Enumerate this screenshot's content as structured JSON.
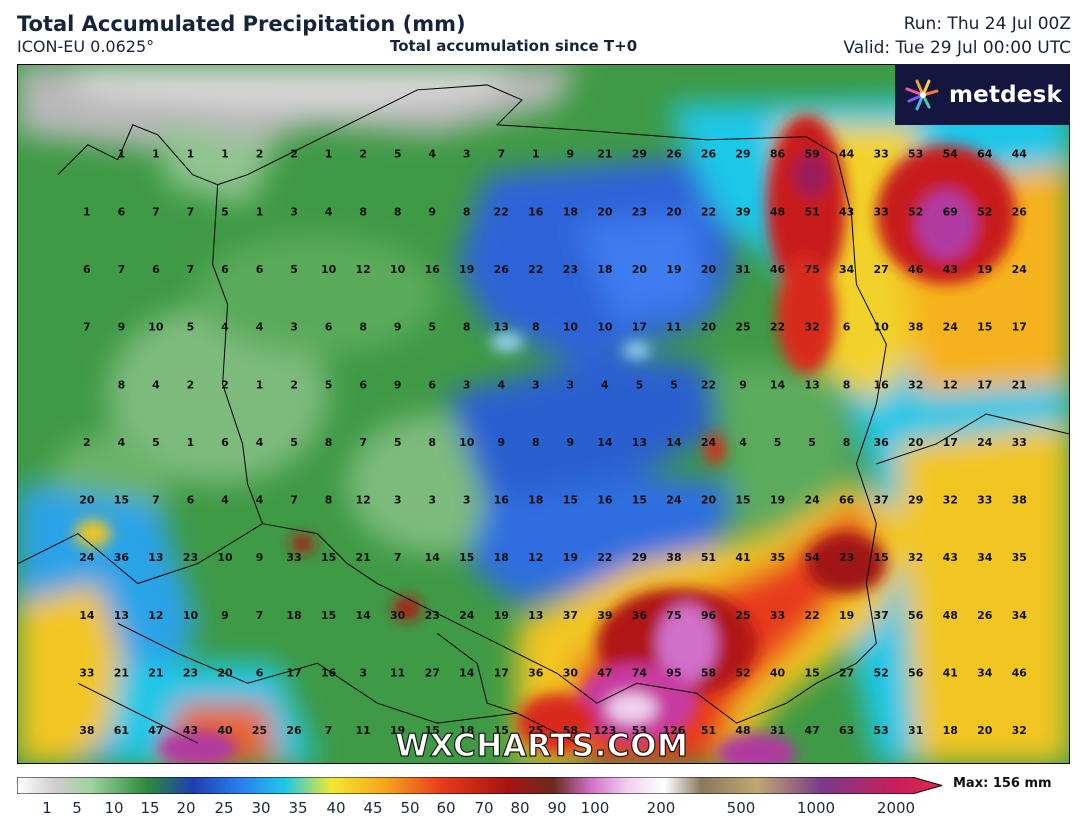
{
  "header": {
    "title": "Total Accumulated Precipitation (mm)",
    "model": "ICON-EU 0.0625°",
    "subtitle": "Total accumulation since T+0",
    "run": "Run: Thu 24 Jul 00Z",
    "valid": "Valid: Tue 29 Jul 00:00 UTC"
  },
  "logo": {
    "text": "metdesk",
    "icon": "metdesk-flower-icon"
  },
  "watermark": "WXCHARTS.COM",
  "colorbar": {
    "ticks": [
      "1",
      "5",
      "10",
      "15",
      "20",
      "25",
      "30",
      "35",
      "40",
      "45",
      "50",
      "60",
      "70",
      "80",
      "90",
      "100",
      "200",
      "500",
      "1000",
      "2000"
    ],
    "max_label": "Max: 156 mm"
  },
  "grid_values": [
    [
      "1",
      "1",
      "1",
      "1",
      "2",
      "2",
      "1",
      "2",
      "5",
      "4",
      "3",
      "7",
      "1",
      "9",
      "21",
      "29",
      "26",
      "26",
      "29",
      "86",
      "59",
      "44",
      "33",
      "53",
      "54",
      "64",
      "44"
    ],
    [
      "1",
      "6",
      "7",
      "7",
      "5",
      "1",
      "3",
      "4",
      "8",
      "8",
      "9",
      "8",
      "22",
      "16",
      "18",
      "20",
      "23",
      "20",
      "22",
      "39",
      "48",
      "51",
      "43",
      "33",
      "52",
      "69",
      "52",
      "26"
    ],
    [
      "6",
      "7",
      "6",
      "7",
      "6",
      "6",
      "5",
      "10",
      "12",
      "10",
      "16",
      "19",
      "26",
      "22",
      "23",
      "18",
      "20",
      "19",
      "20",
      "31",
      "46",
      "75",
      "34",
      "27",
      "46",
      "43",
      "19",
      "24"
    ],
    [
      "7",
      "9",
      "10",
      "5",
      "4",
      "4",
      "3",
      "6",
      "8",
      "9",
      "5",
      "8",
      "13",
      "8",
      "10",
      "10",
      "17",
      "11",
      "20",
      "25",
      "22",
      "32",
      "6",
      "10",
      "38",
      "24",
      "15",
      "17"
    ],
    [
      "8",
      "4",
      "2",
      "2",
      "1",
      "2",
      "5",
      "6",
      "9",
      "6",
      "3",
      "4",
      "3",
      "3",
      "4",
      "5",
      "5",
      "22",
      "9",
      "14",
      "13",
      "8",
      "16",
      "32",
      "12",
      "17",
      "21"
    ],
    [
      "2",
      "4",
      "5",
      "1",
      "6",
      "4",
      "5",
      "8",
      "7",
      "5",
      "8",
      "10",
      "9",
      "8",
      "9",
      "14",
      "13",
      "14",
      "24",
      "4",
      "5",
      "5",
      "8",
      "36",
      "20",
      "17",
      "24",
      "33"
    ],
    [
      "20",
      "15",
      "7",
      "6",
      "4",
      "4",
      "7",
      "8",
      "12",
      "3",
      "3",
      "3",
      "16",
      "18",
      "15",
      "16",
      "15",
      "24",
      "20",
      "15",
      "19",
      "24",
      "66",
      "37",
      "29",
      "32",
      "33",
      "38"
    ],
    [
      "24",
      "36",
      "13",
      "23",
      "10",
      "9",
      "33",
      "15",
      "21",
      "7",
      "14",
      "15",
      "18",
      "12",
      "19",
      "22",
      "29",
      "38",
      "51",
      "41",
      "35",
      "54",
      "23",
      "15",
      "32",
      "43",
      "34",
      "35"
    ],
    [
      "14",
      "13",
      "12",
      "10",
      "9",
      "7",
      "18",
      "15",
      "14",
      "30",
      "23",
      "24",
      "19",
      "13",
      "37",
      "39",
      "36",
      "75",
      "96",
      "25",
      "33",
      "22",
      "19",
      "37",
      "56",
      "48",
      "26",
      "34"
    ],
    [
      "33",
      "21",
      "21",
      "23",
      "20",
      "6",
      "17",
      "16",
      "3",
      "11",
      "27",
      "14",
      "17",
      "36",
      "30",
      "47",
      "74",
      "95",
      "58",
      "52",
      "40",
      "15",
      "27",
      "52",
      "56",
      "41",
      "34",
      "46"
    ],
    [
      "38",
      "61",
      "47",
      "43",
      "40",
      "25",
      "26",
      "7",
      "11",
      "19",
      "15",
      "18",
      "15",
      "25",
      "58",
      "123",
      "53",
      "126",
      "51",
      "48",
      "31",
      "47",
      "63",
      "53",
      "31",
      "18",
      "20",
      "32"
    ]
  ]
}
